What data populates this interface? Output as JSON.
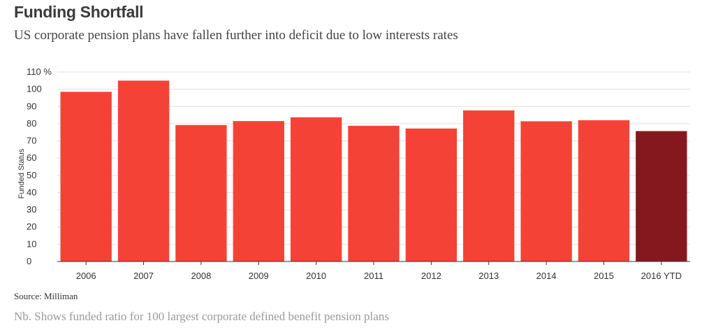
{
  "header": {
    "title": "Funding Shortfall",
    "subtitle": "US corporate pension plans have fallen further into deficit due to low interests rates"
  },
  "footer": {
    "source": "Source: Milliman",
    "note": "Nb. Shows funded ratio for 100 largest corporate defined benefit pension plans"
  },
  "colors": {
    "bar": "#f44336",
    "highlight_bar": "#85181e",
    "grid": "#e0e0e0",
    "axis": "#333333"
  },
  "chart_data": {
    "type": "bar",
    "title": "Funding Shortfall",
    "subtitle": "US corporate pension plans have fallen further into deficit due to low interests rates",
    "categories": [
      "2006",
      "2007",
      "2008",
      "2009",
      "2010",
      "2011",
      "2012",
      "2013",
      "2014",
      "2015",
      "2016 YTD"
    ],
    "values": [
      98.5,
      105,
      79.2,
      81.5,
      83.7,
      78.8,
      77.2,
      87.7,
      81.4,
      82,
      75.7
    ],
    "highlight_index": 10,
    "ylabel": "Funded Status",
    "xlabel": "",
    "ylim": [
      0,
      110
    ],
    "yticks": [
      0,
      10,
      20,
      30,
      40,
      50,
      60,
      70,
      80,
      90,
      100,
      110
    ],
    "ytick_labels": [
      "0",
      "10",
      "20",
      "30",
      "40",
      "50",
      "60",
      "70",
      "80",
      "90",
      "100",
      "110 %"
    ],
    "grid": true,
    "legend": "none"
  }
}
